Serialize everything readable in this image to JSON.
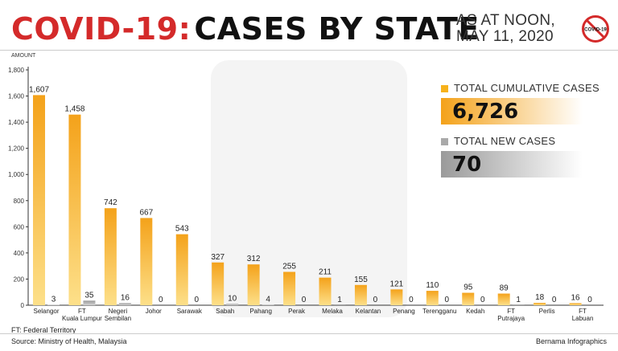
{
  "title": {
    "part1": "COVID-19:",
    "part2": "CASES BY STATE"
  },
  "as_at": {
    "line1": "AS AT NOON,",
    "line2": "MAY 11, 2020"
  },
  "logo_text": "COVID-19",
  "legend": {
    "cumulative": {
      "label": "TOTAL CUMULATIVE CASES",
      "value": "6,726"
    },
    "new": {
      "label": "TOTAL NEW CASES",
      "value": "70"
    }
  },
  "footnote": "FT: Federal Territory",
  "source": "Source: Ministry of Health, Malaysia",
  "credit": "Bernama Infographics",
  "colors": {
    "cumulative": "#f7b21b",
    "new": "#a9a9a9",
    "title_red": "#d42a2a"
  },
  "chart_data": {
    "type": "bar",
    "ylabel": "AMOUNT",
    "ylim": [
      0,
      1800
    ],
    "yticks": [
      "0",
      "200",
      "400",
      "600",
      "800",
      "1,000",
      "1,200",
      "1,400",
      "1,600",
      "1,800"
    ],
    "ytick_values": [
      0,
      200,
      400,
      600,
      800,
      1000,
      1200,
      1400,
      1600,
      1800
    ],
    "categories": [
      [
        "Selangor"
      ],
      [
        "FT",
        "Kuala Lumpur"
      ],
      [
        "Negeri",
        "Sembilan"
      ],
      [
        "Johor"
      ],
      [
        "Sarawak"
      ],
      [
        "Sabah"
      ],
      [
        "Pahang"
      ],
      [
        "Perak"
      ],
      [
        "Melaka"
      ],
      [
        "Kelantan"
      ],
      [
        "Penang"
      ],
      [
        "Terengganu"
      ],
      [
        "Kedah"
      ],
      [
        "FT",
        "Putrajaya"
      ],
      [
        "Perlis"
      ],
      [
        "FT",
        "Labuan"
      ]
    ],
    "series": [
      {
        "name": "TOTAL CUMULATIVE CASES",
        "values": [
          1607,
          1458,
          742,
          667,
          543,
          327,
          312,
          255,
          211,
          155,
          121,
          110,
          95,
          89,
          18,
          16
        ],
        "labels": [
          "1,607",
          "1,458",
          "742",
          "667",
          "543",
          "327",
          "312",
          "255",
          "211",
          "155",
          "121",
          "110",
          "95",
          "89",
          "18",
          "16"
        ]
      },
      {
        "name": "TOTAL NEW CASES",
        "values": [
          3,
          35,
          16,
          0,
          0,
          10,
          4,
          0,
          1,
          0,
          0,
          0,
          0,
          1,
          0,
          0
        ],
        "labels": [
          "3",
          "35",
          "16",
          "0",
          "0",
          "10",
          "4",
          "0",
          "1",
          "0",
          "0",
          "0",
          "0",
          "1",
          "0",
          "0"
        ]
      }
    ],
    "grid": false
  }
}
